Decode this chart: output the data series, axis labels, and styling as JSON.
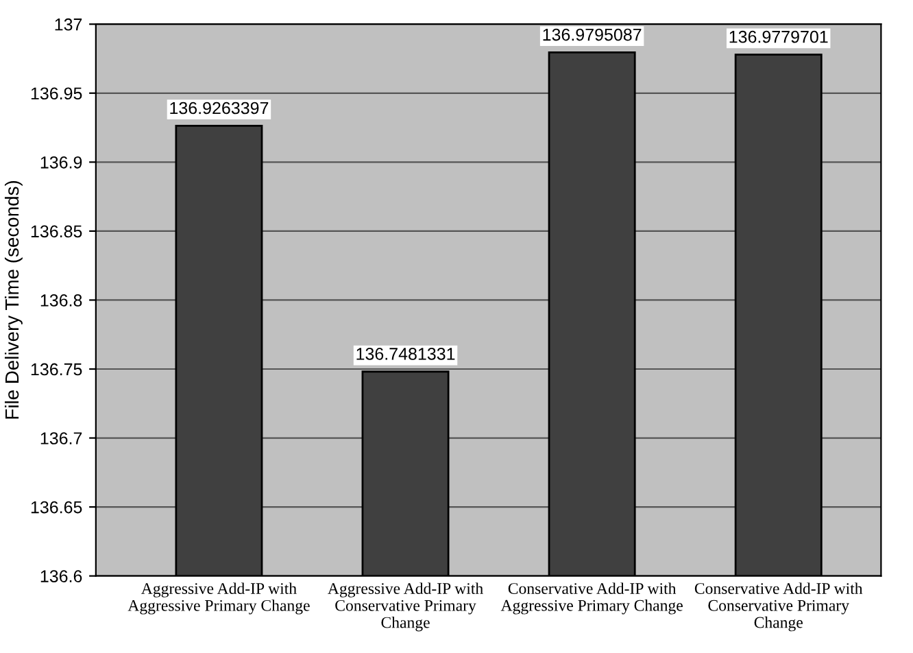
{
  "chart_data": {
    "type": "bar",
    "ylabel": "File Delivery Time (seconds)",
    "categories": [
      "Aggressive Add-IP with\nAggressive Primary Change",
      "Aggressive Add-IP with\nConservative Primary\nChange",
      "Conservative Add-IP with\nAggressive Primary Change",
      "Conservative Add-IP with\nConservative Primary\nChange"
    ],
    "values": [
      136.9263397,
      136.7481331,
      136.9795087,
      136.9779701
    ],
    "color": "#404040",
    "ylim": [
      136.6,
      137
    ],
    "yticks": [
      136.6,
      136.65,
      136.7,
      136.75,
      136.8,
      136.85,
      136.9,
      136.95,
      137
    ],
    "grid": "y",
    "data_labels": true
  }
}
